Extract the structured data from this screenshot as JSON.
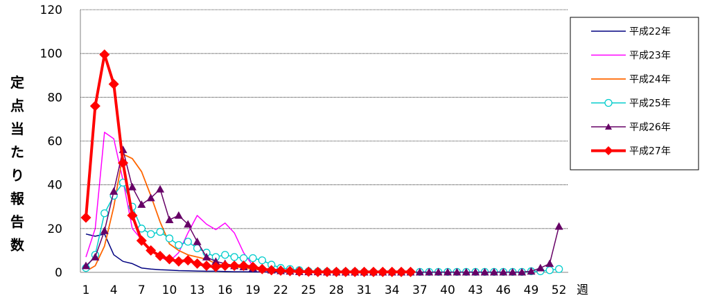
{
  "chart_data": {
    "type": "line",
    "ylabel": "定点当たり報告数",
    "xlabel": "週",
    "ylim": [
      0,
      120
    ],
    "yticks": [
      "0",
      "20",
      "40",
      "60",
      "80",
      "100",
      "120"
    ],
    "xlim": [
      1,
      53
    ],
    "xticks": [
      "1",
      "4",
      "7",
      "10",
      "13",
      "16",
      "19",
      "22",
      "25",
      "28",
      "31",
      "34",
      "37",
      "40",
      "43",
      "46",
      "49",
      "52"
    ],
    "grid": "horizontal",
    "legend_position": "right",
    "series": [
      {
        "name": "平成22年",
        "color": "#000080",
        "marker": "none",
        "width": 1.5,
        "x": [
          1,
          2,
          3,
          4,
          5,
          6,
          7,
          8,
          9,
          10,
          11,
          12,
          13,
          14,
          15,
          16,
          17,
          18,
          19,
          20,
          21,
          22,
          23,
          24,
          25,
          26,
          27,
          28,
          29,
          30
        ],
        "y": [
          17.5,
          16.5,
          17.5,
          8,
          5,
          4,
          2,
          1.5,
          1.2,
          1,
          0.8,
          0.7,
          0.6,
          0.5,
          0.5,
          0.4,
          0.3,
          0.3,
          0.2,
          0.2,
          0.2,
          0.1,
          0.1,
          0.1,
          0.1,
          0,
          0,
          0,
          0,
          0
        ]
      },
      {
        "name": "平成23年",
        "color": "#ff00ff",
        "marker": "none",
        "width": 1.5,
        "x": [
          1,
          2,
          3,
          4,
          5,
          6,
          7,
          8,
          9,
          10,
          11,
          12,
          13,
          14,
          15,
          16,
          17,
          18,
          19,
          20,
          21,
          22,
          23,
          24,
          25,
          26,
          27,
          28,
          29,
          30
        ],
        "y": [
          7,
          20,
          64,
          61,
          42,
          20,
          15,
          10,
          7,
          5,
          9,
          18,
          26,
          22,
          19.5,
          22.5,
          18,
          9,
          3,
          1.5,
          1,
          0.5,
          0.3,
          0.2,
          0.1,
          0,
          0,
          0,
          0,
          0
        ]
      },
      {
        "name": "平成24年",
        "color": "#ff6600",
        "marker": "none",
        "width": 1.8,
        "x": [
          1,
          2,
          3,
          4,
          5,
          6,
          7,
          8,
          9,
          10,
          11,
          12,
          13,
          14,
          15,
          16,
          17,
          18,
          19,
          20,
          21,
          22,
          23,
          24,
          25,
          26,
          27,
          28,
          29,
          30
        ],
        "y": [
          0.5,
          3,
          12,
          30,
          54,
          52,
          46,
          35,
          23,
          13,
          10,
          8,
          7,
          6,
          4,
          3,
          2.5,
          2,
          1.5,
          1,
          0.8,
          0.6,
          0.5,
          0.3,
          0.2,
          0.1,
          0,
          0,
          0,
          0
        ]
      },
      {
        "name": "平成25年",
        "color": "#00cccc",
        "marker": "circle",
        "width": 1.5,
        "x": [
          1,
          2,
          3,
          4,
          5,
          6,
          7,
          8,
          9,
          10,
          11,
          12,
          13,
          14,
          15,
          16,
          17,
          18,
          19,
          20,
          21,
          22,
          23,
          24,
          25,
          26,
          27,
          28,
          29,
          30,
          31,
          32,
          33,
          34,
          35,
          36,
          37,
          38,
          39,
          40,
          41,
          42,
          43,
          44,
          45,
          46,
          47,
          48,
          49,
          50,
          51,
          52
        ],
        "y": [
          2,
          8,
          27,
          35,
          41,
          30,
          20,
          17.5,
          18.5,
          15.5,
          12.5,
          14,
          11,
          9,
          7,
          8,
          7,
          6.5,
          6.5,
          5.5,
          3.5,
          2,
          1.5,
          1,
          0.5,
          0.4,
          0.3,
          0.2,
          0.2,
          0.2,
          0.1,
          0.1,
          0.1,
          0.1,
          0.1,
          0.1,
          0.2,
          0.2,
          0.2,
          0.2,
          0.2,
          0.2,
          0.2,
          0.2,
          0.2,
          0.2,
          0.2,
          0.2,
          0.5,
          0.5,
          1,
          1.5
        ]
      },
      {
        "name": "平成26年",
        "color": "#660066",
        "marker": "triangle",
        "width": 1.5,
        "x": [
          1,
          2,
          3,
          4,
          5,
          6,
          7,
          8,
          9,
          10,
          11,
          12,
          13,
          14,
          15,
          16,
          17,
          18,
          19,
          20,
          21,
          22,
          23,
          24,
          25,
          26,
          27,
          28,
          29,
          30,
          31,
          32,
          33,
          34,
          35,
          36,
          37,
          38,
          39,
          40,
          41,
          42,
          43,
          44,
          45,
          46,
          47,
          48,
          49,
          50,
          51,
          52
        ],
        "y": [
          3,
          7,
          19,
          37,
          56,
          39,
          31,
          34,
          38,
          24,
          26,
          22,
          14,
          7,
          5,
          4,
          3,
          2.5,
          2,
          1.5,
          1,
          0.7,
          0.5,
          0.3,
          0.2,
          0.2,
          0.1,
          0.1,
          0.1,
          0.1,
          0.1,
          0.1,
          0.1,
          0.1,
          0.1,
          0.1,
          0.1,
          0.1,
          0.1,
          0.1,
          0.1,
          0.1,
          0.1,
          0.1,
          0.1,
          0.1,
          0.1,
          0.1,
          0.5,
          2,
          4,
          21
        ]
      },
      {
        "name": "平成27年",
        "color": "#ff0000",
        "marker": "diamond",
        "width": 4,
        "x": [
          1,
          2,
          3,
          4,
          5,
          6,
          7,
          8,
          9,
          10,
          11,
          12,
          13,
          14,
          15,
          16,
          17,
          18,
          19,
          20,
          21,
          22,
          23,
          24,
          25,
          26,
          27,
          28,
          29,
          30,
          31,
          32,
          33,
          34,
          35,
          36
        ],
        "y": [
          25,
          76,
          99.5,
          86,
          50,
          26,
          14.5,
          10,
          7.5,
          6,
          5,
          5.5,
          4,
          3,
          2.5,
          3,
          3,
          3,
          2.5,
          1.5,
          1,
          0.8,
          0.6,
          0.4,
          0.3,
          0.2,
          0.2,
          0.2,
          0.2,
          0.2,
          0.2,
          0.2,
          0.2,
          0.2,
          0.2,
          0.2
        ]
      }
    ]
  }
}
